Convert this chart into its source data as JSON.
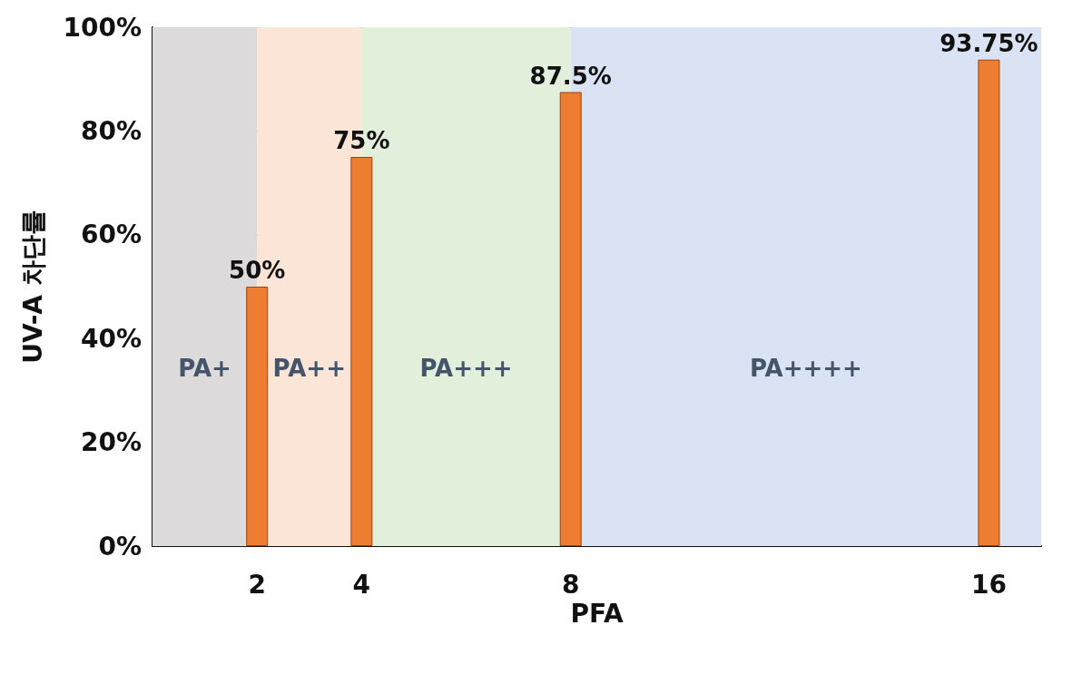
{
  "chart_data": {
    "type": "bar",
    "xlabel": "PFA",
    "ylabel": "UV-A 차단률",
    "x": [
      2,
      4,
      8,
      16
    ],
    "series": [
      {
        "color": "#ed7d31",
        "values": [
          50,
          75,
          87.5,
          93.75
        ],
        "value_labels": [
          "50%",
          "75%",
          "87.5%",
          "93.75%"
        ]
      }
    ],
    "xlim": [
      0,
      17
    ],
    "xticks": [
      2,
      4,
      8,
      16
    ],
    "ylim": [
      0,
      100
    ],
    "yticks": [
      {
        "value": 0,
        "label": "0%"
      },
      {
        "value": 20,
        "label": "20%"
      },
      {
        "value": 40,
        "label": "40%"
      },
      {
        "value": 60,
        "label": "60%"
      },
      {
        "value": 80,
        "label": "80%"
      },
      {
        "value": 100,
        "label": "100%"
      }
    ],
    "grid": "y",
    "bands": [
      {
        "axis": "x",
        "from": 0,
        "to": 2,
        "label": "PA+",
        "color": "#dcdada"
      },
      {
        "axis": "x",
        "from": 2,
        "to": 4,
        "label": "PA++",
        "color": "#fbe5d6"
      },
      {
        "axis": "x",
        "from": 4,
        "to": 8,
        "label": "PA+++",
        "color": "#e2efda"
      },
      {
        "axis": "x",
        "from": 8,
        "to": 17,
        "label": "PA++++",
        "color": "#dae3f3"
      }
    ]
  }
}
